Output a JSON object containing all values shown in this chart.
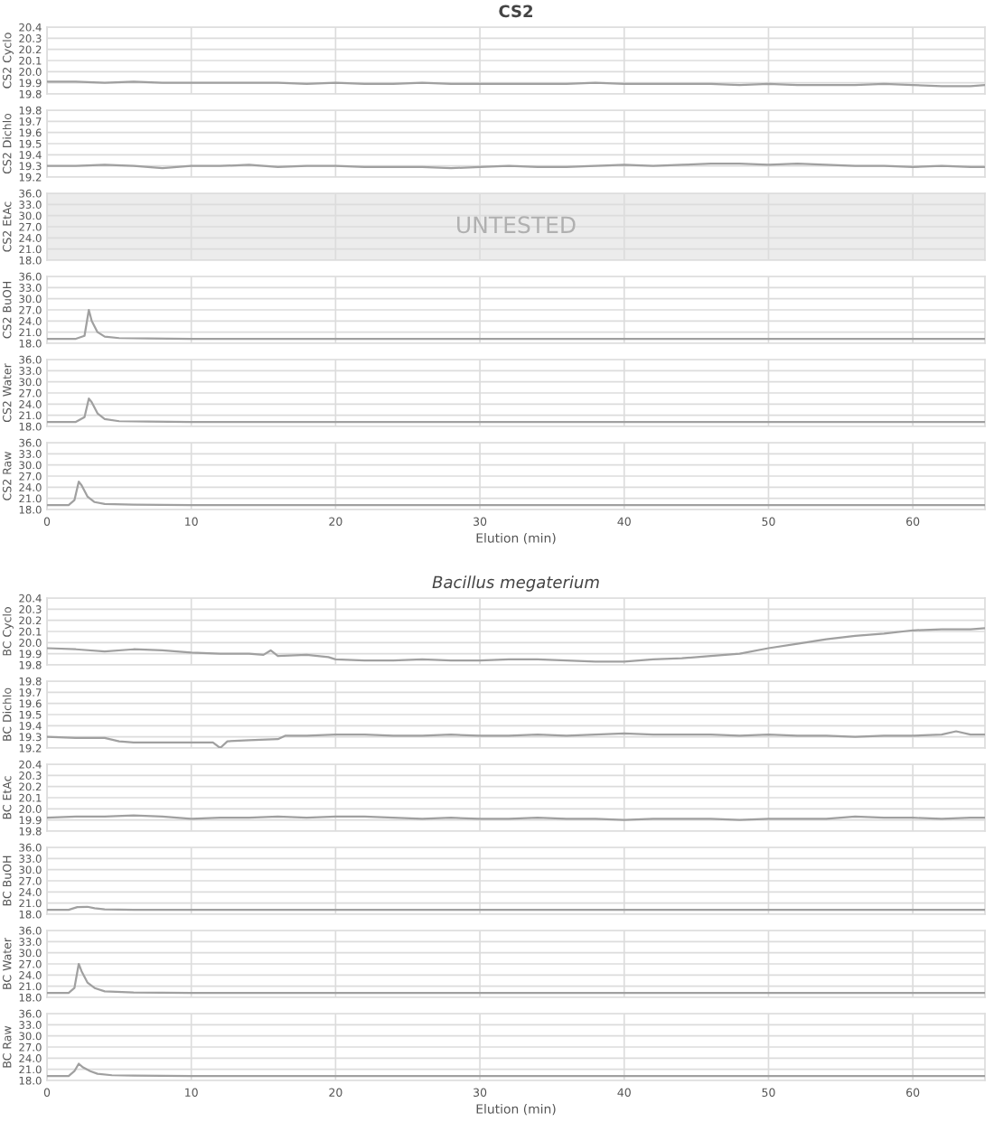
{
  "chart_data": [
    {
      "type": "line",
      "title": "CS2",
      "ylabel": "CS2 Cyclo",
      "xlim": [
        0,
        65
      ],
      "xticks": [
        0,
        10,
        20,
        30,
        40,
        50,
        60
      ],
      "ylim": [
        19.8,
        20.4
      ],
      "yticks": [
        19.8,
        19.9,
        {
          "value": 20.0,
          "label": "20.0"
        },
        20.1,
        20.2,
        20.3,
        20.4
      ],
      "grid": true,
      "tick_labels": "y",
      "series": [
        {
          "color": "#a0a0a0",
          "x": [
            0,
            2,
            4,
            6,
            8,
            10,
            12,
            14,
            16,
            18,
            20,
            22,
            24,
            26,
            28,
            30,
            32,
            34,
            36,
            38,
            40,
            42,
            44,
            46,
            48,
            50,
            52,
            54,
            56,
            58,
            60,
            62,
            64,
            65
          ],
          "values": [
            19.91,
            19.91,
            19.9,
            19.91,
            19.9,
            19.9,
            19.9,
            19.9,
            19.9,
            19.89,
            19.9,
            19.89,
            19.89,
            19.9,
            19.89,
            19.89,
            19.89,
            19.89,
            19.89,
            19.9,
            19.89,
            19.89,
            19.89,
            19.89,
            19.88,
            19.89,
            19.88,
            19.88,
            19.88,
            19.89,
            19.88,
            19.87,
            19.87,
            19.88
          ]
        }
      ]
    },
    {
      "type": "line",
      "ylabel": "CS2 Dichlo",
      "xlim": [
        0,
        65
      ],
      "xticks": [
        0,
        10,
        20,
        30,
        40,
        50,
        60
      ],
      "ylim": [
        19.2,
        19.8
      ],
      "yticks": [
        19.2,
        19.3,
        19.4,
        19.5,
        19.6,
        19.7,
        19.8
      ],
      "grid": true,
      "tick_labels": "y",
      "series": [
        {
          "color": "#a0a0a0",
          "x": [
            0,
            2,
            4,
            6,
            8,
            10,
            12,
            14,
            16,
            18,
            20,
            22,
            24,
            26,
            28,
            30,
            32,
            34,
            36,
            38,
            40,
            42,
            44,
            46,
            48,
            50,
            52,
            54,
            56,
            58,
            60,
            62,
            64,
            65
          ],
          "values": [
            19.3,
            19.3,
            19.31,
            19.3,
            19.28,
            19.3,
            19.3,
            19.31,
            19.29,
            19.3,
            19.3,
            19.29,
            19.29,
            19.29,
            19.28,
            19.29,
            19.3,
            19.29,
            19.29,
            19.3,
            19.31,
            19.3,
            19.31,
            19.32,
            19.32,
            19.31,
            19.32,
            19.31,
            19.3,
            19.3,
            19.29,
            19.3,
            19.29,
            19.29
          ]
        }
      ]
    },
    {
      "type": "line",
      "ylabel": "CS2 EtAc",
      "xlim": [
        0,
        65
      ],
      "xticks": [
        0,
        10,
        20,
        30,
        40,
        50,
        60
      ],
      "ylim": [
        18,
        36
      ],
      "yticks": [
        {
          "value": 18,
          "label": "18.0"
        },
        {
          "value": 21,
          "label": "21.0"
        },
        {
          "value": 24,
          "label": "24.0"
        },
        {
          "value": 27,
          "label": "27.0"
        },
        {
          "value": 30,
          "label": "30.0"
        },
        {
          "value": 33,
          "label": "33.0"
        },
        {
          "value": 36,
          "label": "36.0"
        }
      ],
      "grid": true,
      "tick_labels": "y",
      "bands": [
        {
          "axis": "y",
          "from": 18,
          "to": 36,
          "color": "#ececec"
        }
      ],
      "annotations": [
        "UNTESTED"
      ]
    },
    {
      "type": "line",
      "ylabel": "CS2 BuOH",
      "xlim": [
        0,
        65
      ],
      "xticks": [
        0,
        10,
        20,
        30,
        40,
        50,
        60
      ],
      "ylim": [
        18,
        36
      ],
      "yticks": [
        {
          "value": 18,
          "label": "18.0"
        },
        {
          "value": 21,
          "label": "21.0"
        },
        {
          "value": 24,
          "label": "24.0"
        },
        {
          "value": 27,
          "label": "27.0"
        },
        {
          "value": 30,
          "label": "30.0"
        },
        {
          "value": 33,
          "label": "33.0"
        },
        {
          "value": 36,
          "label": "36.0"
        }
      ],
      "grid": true,
      "tick_labels": "y",
      "series": [
        {
          "color": "#a0a0a0",
          "x": [
            0,
            2,
            2.6,
            2.9,
            3.1,
            3.5,
            4,
            5,
            7,
            10,
            20,
            30,
            40,
            50,
            60,
            65
          ],
          "values": [
            19.2,
            19.2,
            20,
            27,
            24,
            21,
            19.8,
            19.4,
            19.3,
            19.2,
            19.2,
            19.2,
            19.2,
            19.2,
            19.2,
            19.2
          ]
        }
      ]
    },
    {
      "type": "line",
      "ylabel": "CS2 Water",
      "xlim": [
        0,
        65
      ],
      "xticks": [
        0,
        10,
        20,
        30,
        40,
        50,
        60
      ],
      "ylim": [
        18,
        36
      ],
      "yticks": [
        {
          "value": 18,
          "label": "18.0"
        },
        {
          "value": 21,
          "label": "21.0"
        },
        {
          "value": 24,
          "label": "24.0"
        },
        {
          "value": 27,
          "label": "27.0"
        },
        {
          "value": 30,
          "label": "30.0"
        },
        {
          "value": 33,
          "label": "33.0"
        },
        {
          "value": 36,
          "label": "36.0"
        }
      ],
      "grid": true,
      "tick_labels": "y",
      "series": [
        {
          "color": "#a0a0a0",
          "x": [
            0,
            2,
            2.6,
            2.9,
            3.1,
            3.5,
            4,
            5,
            7,
            10,
            20,
            30,
            40,
            50,
            60,
            65
          ],
          "values": [
            19.2,
            19.2,
            20.5,
            25.5,
            24.5,
            21.5,
            20,
            19.4,
            19.3,
            19.2,
            19.2,
            19.2,
            19.2,
            19.2,
            19.2,
            19.2
          ]
        }
      ]
    },
    {
      "type": "line",
      "ylabel": "CS2 Raw",
      "xlabel": "Elution (min)",
      "xlim": [
        0,
        65
      ],
      "xticks": [
        0,
        10,
        20,
        30,
        40,
        50,
        60
      ],
      "ylim": [
        18,
        36
      ],
      "yticks": [
        {
          "value": 18,
          "label": "18.0"
        },
        {
          "value": 21,
          "label": "21.0"
        },
        {
          "value": 24,
          "label": "24.0"
        },
        {
          "value": 27,
          "label": "27.0"
        },
        {
          "value": 30,
          "label": "30.0"
        },
        {
          "value": 33,
          "label": "33.0"
        },
        {
          "value": 36,
          "label": "36.0"
        }
      ],
      "grid": true,
      "series": [
        {
          "color": "#a0a0a0",
          "x": [
            0,
            1.5,
            1.9,
            2.2,
            2.4,
            2.8,
            3.3,
            4,
            6,
            10,
            20,
            30,
            40,
            50,
            60,
            65
          ],
          "values": [
            19.2,
            19.2,
            20.5,
            25.5,
            24.5,
            21.5,
            20,
            19.5,
            19.3,
            19.2,
            19.2,
            19.2,
            19.2,
            19.2,
            19.2,
            19.2
          ]
        }
      ]
    },
    {
      "type": "line",
      "title": "Bacillus megaterium",
      "ylabel": "BC Cyclo",
      "xlim": [
        0,
        65
      ],
      "xticks": [
        0,
        10,
        20,
        30,
        40,
        50,
        60
      ],
      "ylim": [
        19.8,
        20.4
      ],
      "yticks": [
        19.8,
        19.9,
        {
          "value": 20.0,
          "label": "20.0"
        },
        20.1,
        20.2,
        20.3,
        20.4
      ],
      "grid": true,
      "tick_labels": "y",
      "series": [
        {
          "color": "#a0a0a0",
          "x": [
            0,
            2,
            4,
            6,
            8,
            10,
            12,
            14,
            15,
            15.5,
            16,
            18,
            19.5,
            20,
            22,
            24,
            26,
            28,
            30,
            32,
            34,
            36,
            38,
            40,
            42,
            44,
            46,
            48,
            50,
            52,
            54,
            56,
            58,
            60,
            62,
            64,
            65
          ],
          "values": [
            19.95,
            19.94,
            19.92,
            19.94,
            19.93,
            19.91,
            19.9,
            19.9,
            19.89,
            19.93,
            19.88,
            19.89,
            19.87,
            19.85,
            19.84,
            19.84,
            19.85,
            19.84,
            19.84,
            19.85,
            19.85,
            19.84,
            19.83,
            19.83,
            19.85,
            19.86,
            19.88,
            19.9,
            19.95,
            19.99,
            20.03,
            20.06,
            20.08,
            20.11,
            20.12,
            20.12,
            20.13
          ]
        }
      ]
    },
    {
      "type": "line",
      "ylabel": "BC Dichlo",
      "xlim": [
        0,
        65
      ],
      "xticks": [
        0,
        10,
        20,
        30,
        40,
        50,
        60
      ],
      "ylim": [
        19.2,
        19.8
      ],
      "yticks": [
        19.2,
        19.3,
        19.4,
        19.5,
        19.6,
        19.7,
        19.8
      ],
      "grid": true,
      "tick_labels": "y",
      "series": [
        {
          "color": "#a0a0a0",
          "x": [
            0,
            2,
            4,
            5,
            6,
            8,
            10,
            11.5,
            12,
            12.5,
            14,
            16,
            16.5,
            18,
            20,
            22,
            24,
            26,
            28,
            30,
            32,
            34,
            36,
            38,
            40,
            42,
            44,
            46,
            48,
            50,
            52,
            54,
            56,
            58,
            60,
            62,
            63,
            64,
            65
          ],
          "values": [
            19.3,
            19.29,
            19.29,
            19.26,
            19.25,
            19.25,
            19.25,
            19.25,
            19.2,
            19.26,
            19.27,
            19.28,
            19.31,
            19.31,
            19.32,
            19.32,
            19.31,
            19.31,
            19.32,
            19.31,
            19.31,
            19.32,
            19.31,
            19.32,
            19.33,
            19.32,
            19.32,
            19.32,
            19.31,
            19.32,
            19.31,
            19.31,
            19.3,
            19.31,
            19.31,
            19.32,
            19.35,
            19.32,
            19.32
          ]
        }
      ]
    },
    {
      "type": "line",
      "ylabel": "BC EtAc",
      "xlim": [
        0,
        65
      ],
      "xticks": [
        0,
        10,
        20,
        30,
        40,
        50,
        60
      ],
      "ylim": [
        19.8,
        20.4
      ],
      "yticks": [
        19.8,
        19.9,
        {
          "value": 20.0,
          "label": "20.0"
        },
        20.1,
        20.2,
        20.3,
        20.4
      ],
      "grid": true,
      "tick_labels": "y",
      "series": [
        {
          "color": "#a0a0a0",
          "x": [
            0,
            2,
            4,
            6,
            8,
            10,
            12,
            14,
            16,
            18,
            20,
            22,
            24,
            26,
            28,
            30,
            32,
            34,
            36,
            38,
            40,
            42,
            44,
            46,
            48,
            50,
            52,
            54,
            56,
            58,
            60,
            62,
            64,
            65
          ],
          "values": [
            19.92,
            19.93,
            19.93,
            19.94,
            19.93,
            19.91,
            19.92,
            19.92,
            19.93,
            19.92,
            19.93,
            19.93,
            19.92,
            19.91,
            19.92,
            19.91,
            19.91,
            19.92,
            19.91,
            19.91,
            19.9,
            19.91,
            19.91,
            19.91,
            19.9,
            19.91,
            19.91,
            19.91,
            19.93,
            19.92,
            19.92,
            19.91,
            19.92,
            19.92
          ]
        }
      ]
    },
    {
      "type": "line",
      "ylabel": "BC BuOH",
      "xlim": [
        0,
        65
      ],
      "xticks": [
        0,
        10,
        20,
        30,
        40,
        50,
        60
      ],
      "ylim": [
        18,
        36
      ],
      "yticks": [
        {
          "value": 18,
          "label": "18.0"
        },
        {
          "value": 21,
          "label": "21.0"
        },
        {
          "value": 24,
          "label": "24.0"
        },
        {
          "value": 27,
          "label": "27.0"
        },
        {
          "value": 30,
          "label": "30.0"
        },
        {
          "value": 33,
          "label": "33.0"
        },
        {
          "value": 36,
          "label": "36.0"
        }
      ],
      "grid": true,
      "tick_labels": "y",
      "series": [
        {
          "color": "#a0a0a0",
          "x": [
            0,
            1.5,
            2.1,
            2.8,
            3.3,
            4,
            6,
            10,
            20,
            30,
            40,
            50,
            60,
            65
          ],
          "values": [
            19.2,
            19.2,
            19.9,
            20,
            19.6,
            19.3,
            19.2,
            19.2,
            19.2,
            19.2,
            19.2,
            19.2,
            19.2,
            19.2
          ]
        }
      ]
    },
    {
      "type": "line",
      "ylabel": "BC Water",
      "xlim": [
        0,
        65
      ],
      "xticks": [
        0,
        10,
        20,
        30,
        40,
        50,
        60
      ],
      "ylim": [
        18,
        36
      ],
      "yticks": [
        {
          "value": 18,
          "label": "18.0"
        },
        {
          "value": 21,
          "label": "21.0"
        },
        {
          "value": 24,
          "label": "24.0"
        },
        {
          "value": 27,
          "label": "27.0"
        },
        {
          "value": 30,
          "label": "30.0"
        },
        {
          "value": 33,
          "label": "33.0"
        },
        {
          "value": 36,
          "label": "36.0"
        }
      ],
      "grid": true,
      "tick_labels": "y",
      "series": [
        {
          "color": "#a0a0a0",
          "x": [
            0,
            1.5,
            1.9,
            2.2,
            2.4,
            2.8,
            3.3,
            4,
            6,
            10,
            20,
            30,
            40,
            50,
            60,
            65
          ],
          "values": [
            19.2,
            19.2,
            20.5,
            27,
            25,
            22,
            20.5,
            19.6,
            19.3,
            19.2,
            19.2,
            19.2,
            19.2,
            19.2,
            19.2,
            19.2
          ]
        }
      ]
    },
    {
      "type": "line",
      "ylabel": "BC Raw",
      "xlabel": "Elution (min)",
      "xlim": [
        0,
        65
      ],
      "xticks": [
        0,
        10,
        20,
        30,
        40,
        50,
        60
      ],
      "ylim": [
        18,
        36
      ],
      "yticks": [
        {
          "value": 18,
          "label": "18.0"
        },
        {
          "value": 21,
          "label": "21.0"
        },
        {
          "value": 24,
          "label": "24.0"
        },
        {
          "value": 27,
          "label": "27.0"
        },
        {
          "value": 30,
          "label": "30.0"
        },
        {
          "value": 33,
          "label": "33.0"
        },
        {
          "value": 36,
          "label": "36.0"
        }
      ],
      "grid": true,
      "series": [
        {
          "color": "#a0a0a0",
          "x": [
            0,
            1.5,
            1.9,
            2.2,
            2.5,
            3,
            3.5,
            4.5,
            6,
            10,
            20,
            30,
            40,
            50,
            60,
            65
          ],
          "values": [
            19.2,
            19.2,
            20.5,
            22.5,
            21.5,
            20.5,
            19.8,
            19.4,
            19.3,
            19.2,
            19.2,
            19.2,
            19.2,
            19.2,
            19.2,
            19.2
          ]
        }
      ]
    }
  ]
}
